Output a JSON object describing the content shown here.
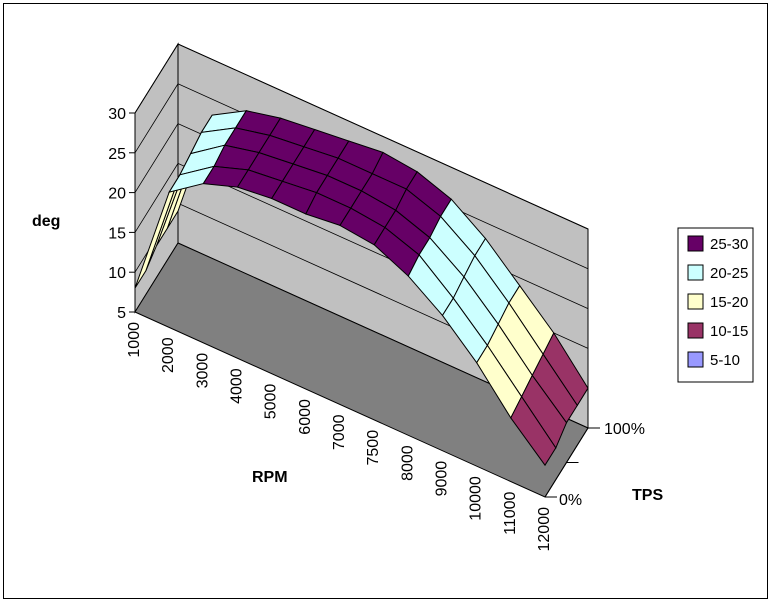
{
  "chart_data": {
    "type": "surface",
    "title": "",
    "xlabel": "RPM",
    "ylabel": "deg",
    "zlabel": "TPS",
    "x": [
      "1000",
      "2000",
      "3000",
      "4000",
      "5000",
      "6000",
      "7000",
      "7500",
      "8000",
      "9000",
      "10000",
      "11000",
      "12000"
    ],
    "tps": [
      "0%",
      "100%"
    ],
    "tps_values": [
      0,
      25,
      50,
      75,
      100
    ],
    "ylim": [
      5,
      30
    ],
    "yticks": [
      "5",
      "10",
      "15",
      "20",
      "25",
      "30"
    ],
    "values": [
      [
        8,
        22,
        25,
        26.5,
        27,
        27,
        27.5,
        27,
        25,
        22,
        18,
        13,
        9
      ],
      [
        8,
        22,
        25,
        26.5,
        27,
        27.5,
        27.5,
        27,
        25.5,
        22,
        18,
        13.5,
        9
      ],
      [
        9,
        22.5,
        25.5,
        26.5,
        27,
        27.5,
        27.5,
        27,
        25.5,
        22.5,
        18.5,
        14,
        10
      ],
      [
        9,
        23,
        25.5,
        26.5,
        27,
        27.5,
        27.5,
        27.5,
        26,
        23,
        19,
        14.5,
        10
      ],
      [
        9,
        23,
        25.5,
        26.5,
        27,
        27.5,
        28,
        27.5,
        26,
        23,
        19,
        15,
        10
      ]
    ],
    "legend": [
      {
        "label": "25-30",
        "color": "#660066"
      },
      {
        "label": "20-25",
        "color": "#ccffff"
      },
      {
        "label": "15-20",
        "color": "#ffffcc"
      },
      {
        "label": "10-15",
        "color": "#993366"
      },
      {
        "label": "5-10",
        "color": "#9999ff"
      }
    ],
    "colors": {
      "back_wall": "#c0c0c0",
      "floor": "#808080"
    },
    "grid": true,
    "legend_position": "right"
  }
}
